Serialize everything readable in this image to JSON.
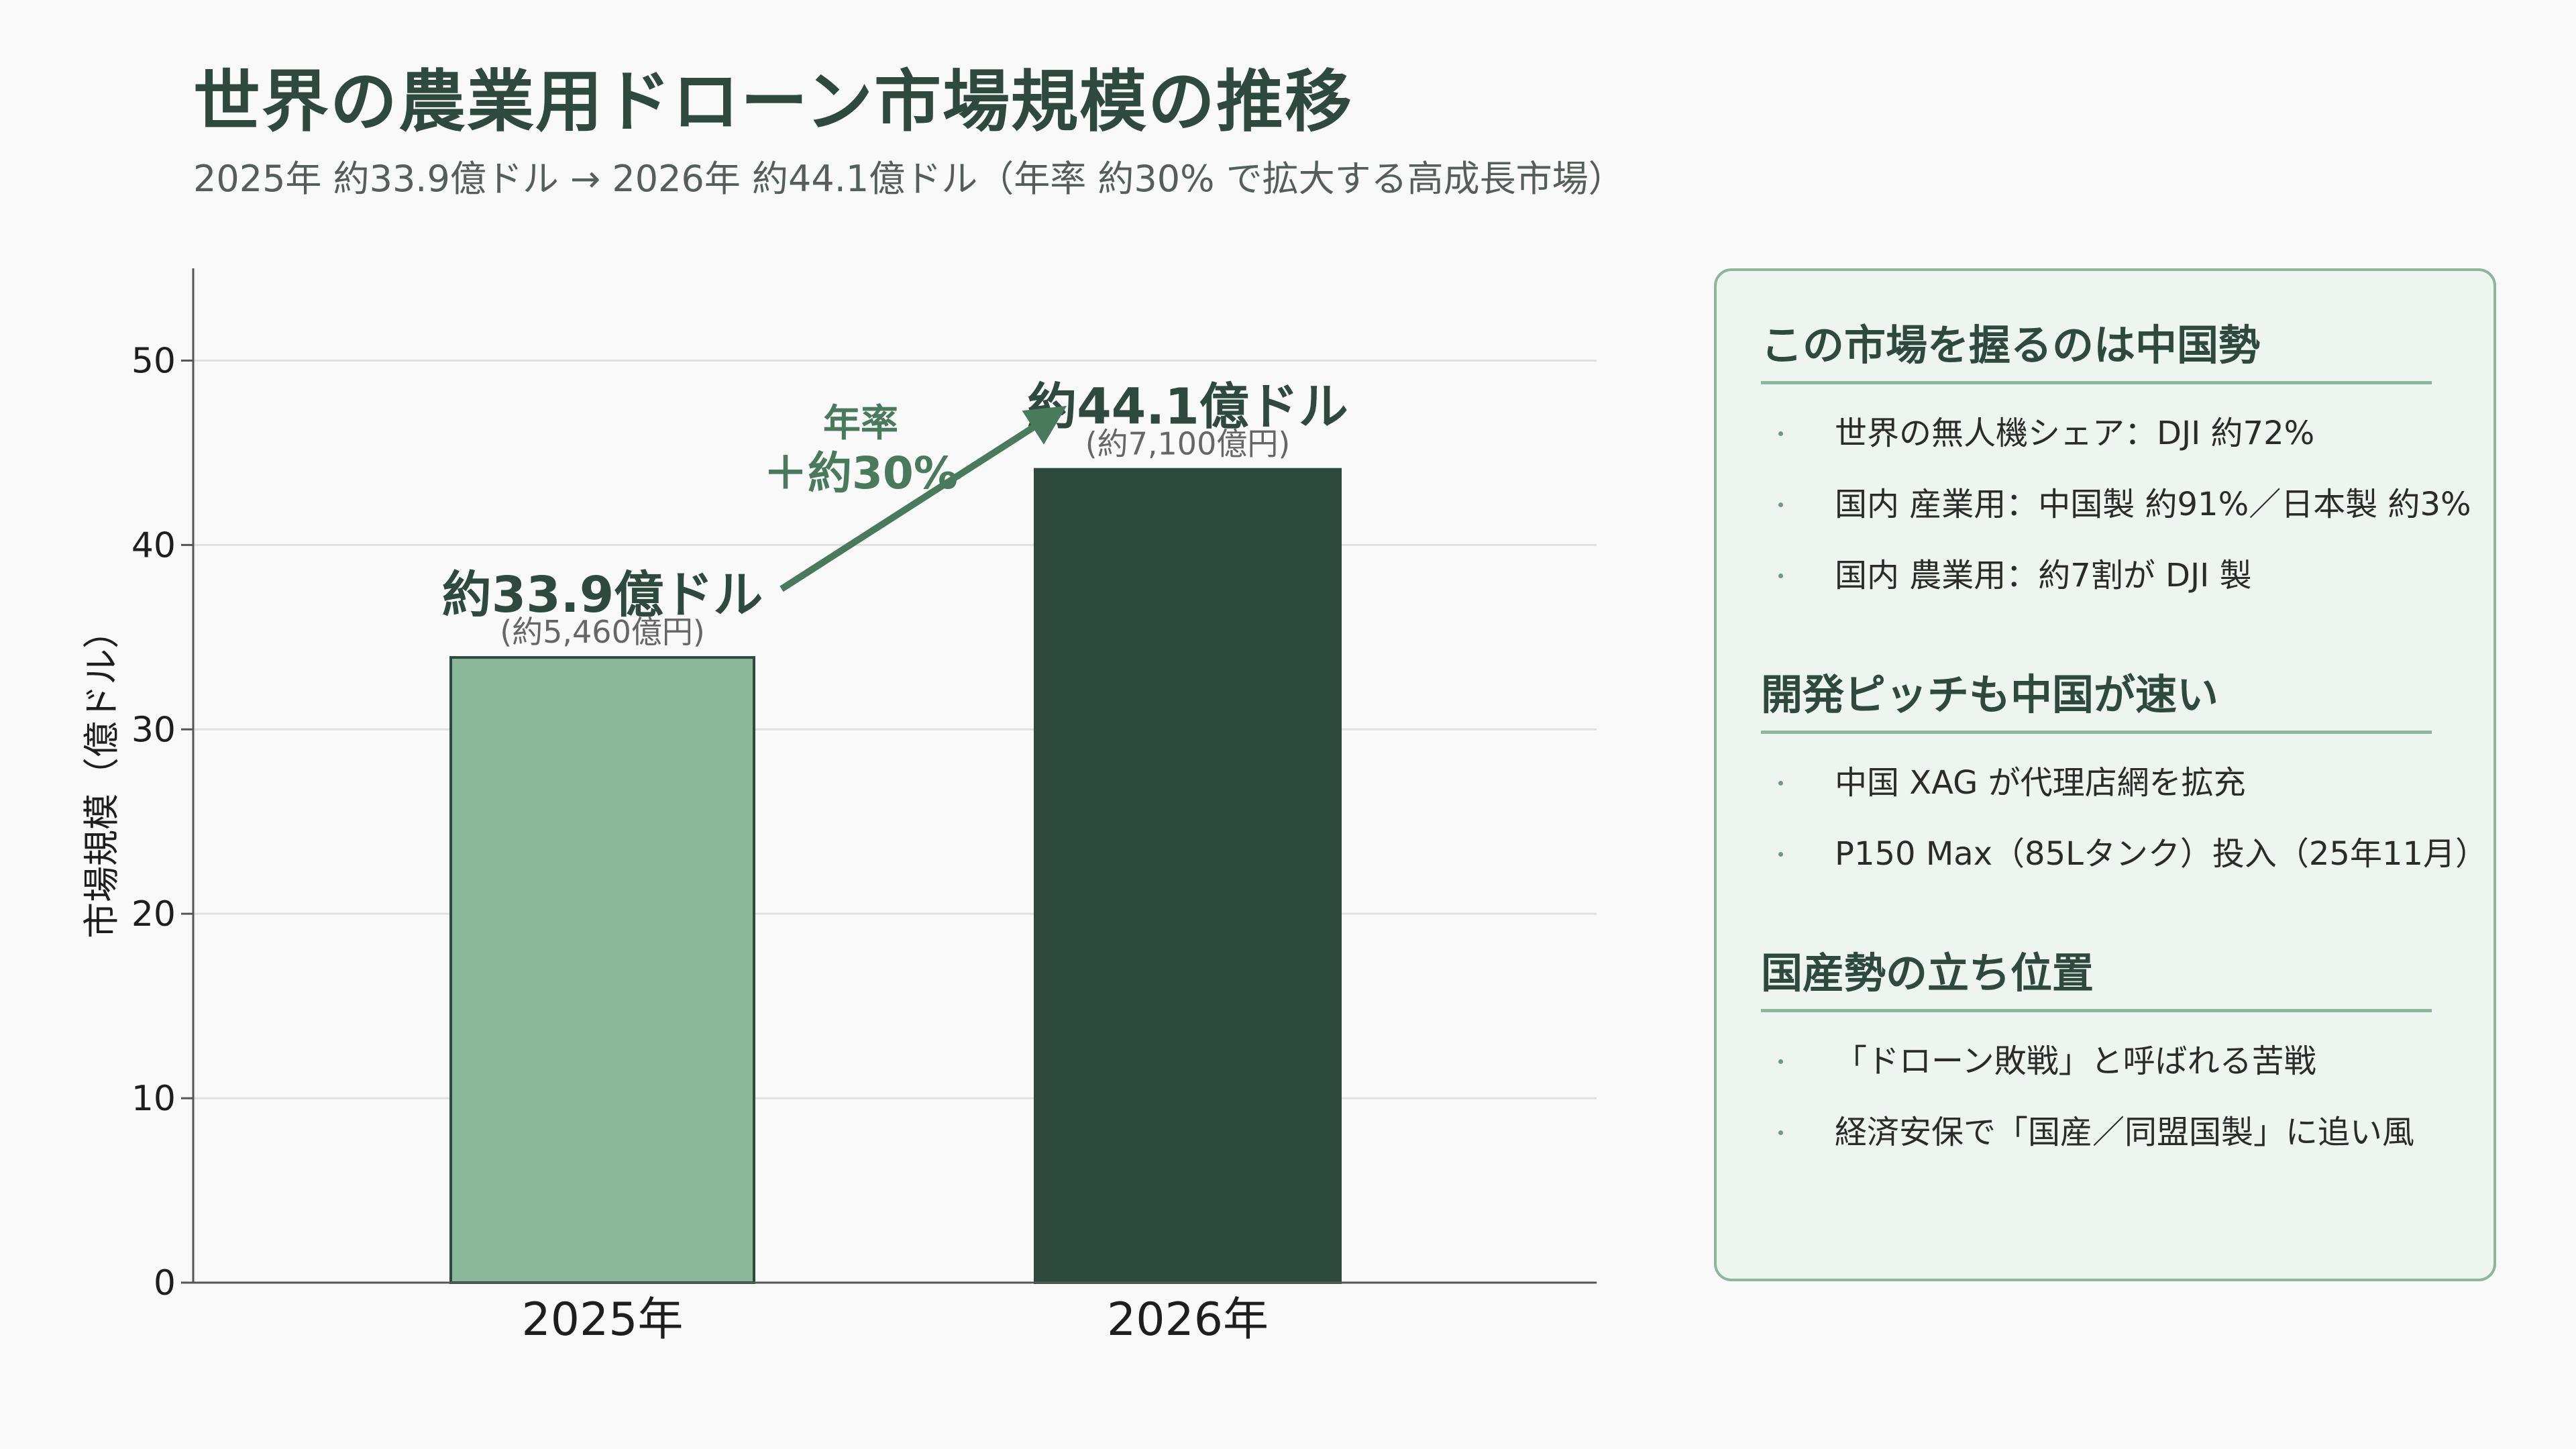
{
  "title": "世界の農業用ドローン市場規模の推移",
  "subtitle": "2025年 約33.9億ドル → 2026年 約44.1億ドル（年率 約30% で拡大する高成長市場）",
  "colors": {
    "bar_2025": "#8bb898",
    "bar_2026": "#2e4a3f",
    "accent": "#4a7a5c",
    "panel_border": "#8bb898",
    "panel_bg": "#eef4ef"
  },
  "chart_data": {
    "type": "bar",
    "categories": [
      "2025年",
      "2026年"
    ],
    "values": [
      33.9,
      44.1
    ],
    "ylabel": "市場規模（億ドル）",
    "ylim": [
      0,
      55
    ],
    "yticks": [
      0,
      10,
      20,
      30,
      40,
      50
    ],
    "grid": true,
    "bar_labels": [
      "約33.9億ドル",
      "約44.1億ドル"
    ],
    "bar_sublabels": [
      "(約5,460億円)",
      "(約7,100億円)"
    ],
    "growth_annotation": {
      "line1": "年率",
      "line2": "＋約30%"
    }
  },
  "panel": {
    "sections": [
      {
        "title": "この市場を握るのは中国勢",
        "items": [
          "世界の無人機シェア：DJI 約72%",
          "国内 産業用：中国製 約91%／日本製 約3%",
          "国内 農業用：約7割が DJI 製"
        ]
      },
      {
        "title": "開発ピッチも中国が速い",
        "items": [
          "中国 XAG が代理店網を拡充",
          "P150 Max（85Lタンク）投入（25年11月）"
        ]
      },
      {
        "title": "国産勢の立ち位置",
        "items": [
          "「ドローン敗戦」と呼ばれる苦戦",
          "経済安保で「国産／同盟国製」に追い風"
        ]
      }
    ]
  }
}
